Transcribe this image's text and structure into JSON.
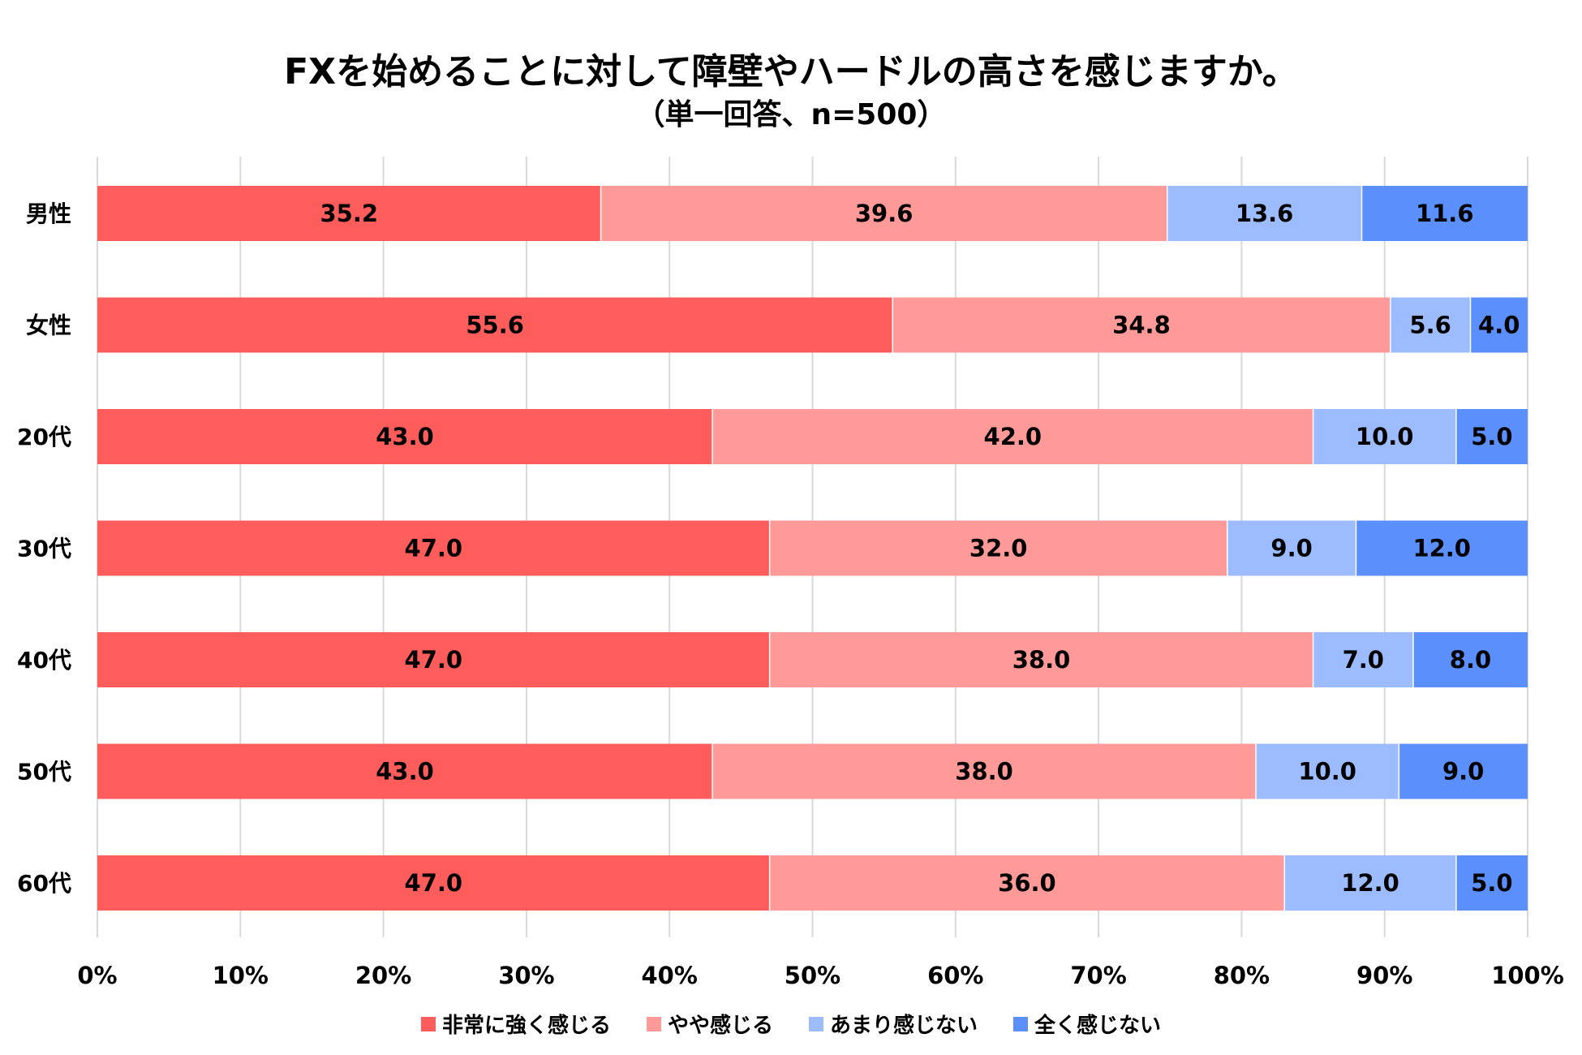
{
  "chart_data": {
    "type": "bar",
    "orientation": "horizontal",
    "stacked": true,
    "title": "FXを始めることに対して障壁やハードルの高さを感じますか。",
    "subtitle": "（単一回答、n=500）",
    "categories": [
      "男性",
      "女性",
      "20代",
      "30代",
      "40代",
      "50代",
      "60代"
    ],
    "series": [
      {
        "name": "非常に強く感じる",
        "color": "#FF5C5C",
        "values": [
          35.2,
          55.6,
          43.0,
          47.0,
          47.0,
          43.0,
          47.0
        ]
      },
      {
        "name": "やや感じる",
        "color": "#FF9A98",
        "values": [
          39.6,
          34.8,
          42.0,
          32.0,
          38.0,
          38.0,
          36.0
        ]
      },
      {
        "name": "あまり感じない",
        "color": "#9DBCFF",
        "values": [
          13.6,
          5.6,
          10.0,
          9.0,
          7.0,
          10.0,
          12.0
        ]
      },
      {
        "name": "全く感じない",
        "color": "#5B8FFB",
        "values": [
          11.6,
          4.0,
          5.0,
          12.0,
          8.0,
          9.0,
          5.0
        ]
      }
    ],
    "xlim": [
      0,
      100
    ],
    "xticks": [
      "0%",
      "10%",
      "20%",
      "30%",
      "40%",
      "50%",
      "60%",
      "70%",
      "80%",
      "90%",
      "100%"
    ],
    "grid": true,
    "legend_position": "bottom"
  }
}
